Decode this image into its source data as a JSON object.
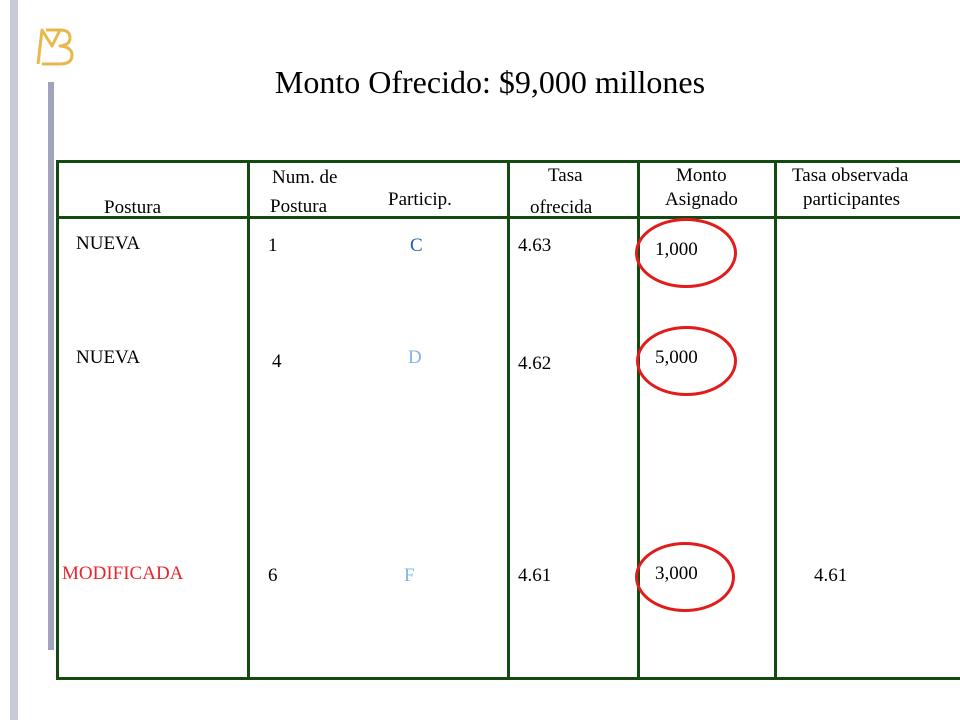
{
  "title": "Monto Ofrecido: $9,000 millones",
  "logo_letter": "B",
  "columns": {
    "postura": "Postura",
    "num_line1": "Num. de",
    "num_line2": "Postura",
    "particip": "Particip.",
    "tasa_line1": "Tasa",
    "tasa_line2": "ofrecida",
    "monto_line1": "Monto",
    "monto_line2": "Asignado",
    "obs_line1": "Tasa observada",
    "obs_line2": "participantes"
  },
  "rows": [
    {
      "postura": "NUEVA",
      "num": "1",
      "particip": "C",
      "tasa": "4.63",
      "monto": "1,000",
      "tasa_obs": ""
    },
    {
      "postura": "NUEVA",
      "num": "4",
      "particip": "D",
      "tasa": "4.62",
      "monto": "5,000",
      "tasa_obs": ""
    },
    {
      "postura": "MODIFICADA",
      "num": "6",
      "particip": "F",
      "tasa": "4.61",
      "monto": "3,000",
      "tasa_obs": "4.61"
    }
  ],
  "colors": {
    "border": "#124a12",
    "highlight_circle": "#e21b1b",
    "modified_text": "#e8262b",
    "participant_c": "#1f5fb0",
    "participant_df": "#7eb6e8",
    "logo": "#e8b84a"
  }
}
